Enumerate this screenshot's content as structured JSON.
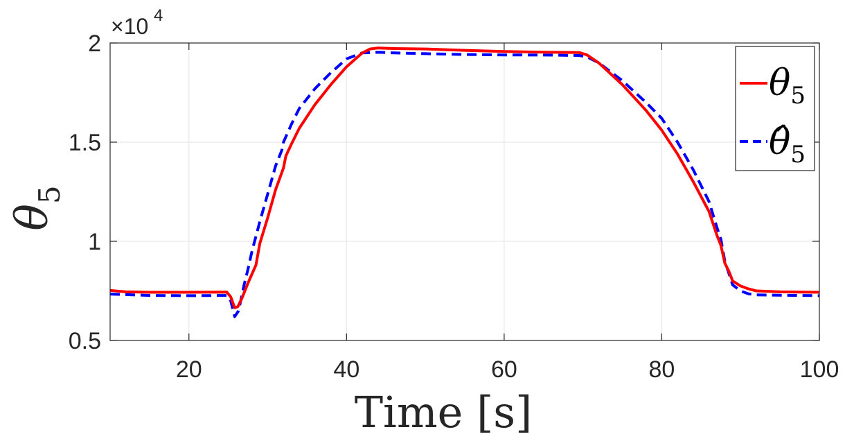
{
  "chart_data": {
    "type": "line",
    "xlabel": "Time [s]",
    "ylabel": "θ5",
    "ylabel_main": "θ",
    "ylabel_sub": "5",
    "xlim": [
      10,
      100
    ],
    "ylim": [
      5000,
      20000
    ],
    "xticks": [
      20,
      40,
      60,
      80,
      100
    ],
    "xtick_labels": [
      "20",
      "40",
      "60",
      "80",
      "100"
    ],
    "yticks": [
      5000,
      10000,
      15000,
      20000
    ],
    "ytick_labels": [
      "0.5",
      "1",
      "1.5",
      "2"
    ],
    "y_exponent_base": "×10",
    "y_exponent_power": "4",
    "grid": true,
    "legend_position": "top-right",
    "series": [
      {
        "name": "θ5",
        "label_main": "θ",
        "label_sub": "5",
        "color": "#ff0000",
        "style": "solid",
        "x": [
          10,
          12,
          15,
          20,
          24.8,
          25.3,
          25.8,
          26.2,
          26.7,
          27.5,
          28.5,
          29,
          30,
          31,
          32,
          32.3,
          33,
          34,
          36,
          38,
          40,
          42,
          43,
          44,
          46,
          50,
          55,
          60,
          65,
          69.5,
          70.5,
          72,
          75,
          78,
          80,
          82,
          84,
          86,
          87,
          87.5,
          88,
          88.5,
          89,
          90,
          91,
          92,
          95,
          100
        ],
        "y": [
          7520,
          7450,
          7430,
          7430,
          7440,
          7200,
          6650,
          6700,
          7100,
          7900,
          8800,
          9900,
          11200,
          12600,
          13700,
          14300,
          14900,
          15700,
          16900,
          17900,
          18800,
          19500,
          19700,
          19750,
          19720,
          19700,
          19630,
          19570,
          19540,
          19520,
          19400,
          19000,
          17900,
          16600,
          15600,
          14400,
          13000,
          11500,
          10300,
          9800,
          8900,
          8500,
          8000,
          7750,
          7600,
          7500,
          7450,
          7430
        ]
      },
      {
        "name": "θ̂5",
        "label_main": "θ̂",
        "label_sub": "5",
        "color": "#0000ff",
        "style": "dashed",
        "x": [
          10,
          15,
          20,
          24.8,
          25.3,
          25.8,
          26.3,
          27,
          27.5,
          28,
          29,
          30,
          31,
          31.8,
          32,
          33,
          34,
          36,
          38,
          40,
          42,
          44,
          46,
          50,
          55,
          60,
          65,
          69.5,
          70.5,
          72,
          75,
          78,
          80,
          82,
          84,
          86,
          87,
          87.5,
          88,
          88.5,
          89,
          90,
          91,
          92,
          95,
          100
        ],
        "y": [
          7340,
          7270,
          7260,
          7270,
          7000,
          6200,
          6500,
          7800,
          8600,
          9500,
          11000,
          12400,
          13800,
          14600,
          15000,
          15900,
          16700,
          17700,
          18500,
          19200,
          19500,
          19530,
          19500,
          19460,
          19420,
          19400,
          19390,
          19370,
          19300,
          19000,
          18100,
          17000,
          16200,
          15000,
          13600,
          12000,
          10700,
          10100,
          9000,
          8400,
          7800,
          7500,
          7350,
          7300,
          7280,
          7260
        ]
      }
    ]
  }
}
